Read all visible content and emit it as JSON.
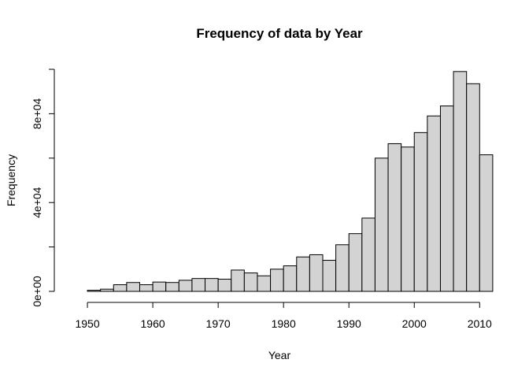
{
  "chart_data": {
    "type": "bar",
    "title": "Frequency of data by Year",
    "xlabel": "Year",
    "ylabel": "Frequency",
    "bin_width": 2,
    "bin_starts": [
      1950,
      1952,
      1954,
      1956,
      1958,
      1960,
      1962,
      1964,
      1966,
      1968,
      1970,
      1972,
      1974,
      1976,
      1978,
      1980,
      1982,
      1984,
      1986,
      1988,
      1990,
      1992,
      1994,
      1996,
      1998,
      2000,
      2002,
      2004,
      2006,
      2008,
      2010
    ],
    "values": [
      500,
      1000,
      3000,
      4000,
      3000,
      4200,
      4000,
      5000,
      5800,
      5800,
      5500,
      9600,
      8300,
      7000,
      10000,
      11500,
      15500,
      16500,
      14000,
      21000,
      26000,
      33000,
      60000,
      66500,
      65000,
      71500,
      79000,
      83500,
      99000,
      93500,
      61500
    ],
    "xlim": [
      1950,
      2012
    ],
    "ylim": [
      0,
      100000
    ],
    "x_ticks": [
      1950,
      1960,
      1970,
      1980,
      1990,
      2000,
      2010
    ],
    "x_tick_labels": [
      "1950",
      "1960",
      "1970",
      "1980",
      "1990",
      "2000",
      "2010"
    ],
    "y_ticks": [
      0,
      20000,
      40000,
      60000,
      80000,
      100000
    ],
    "y_tick_labels": [
      "0e+00",
      "",
      "4e+04",
      "",
      "8e+04",
      ""
    ],
    "fill_color": "#d3d3d3",
    "edge_color": "#000000",
    "grid": false
  }
}
